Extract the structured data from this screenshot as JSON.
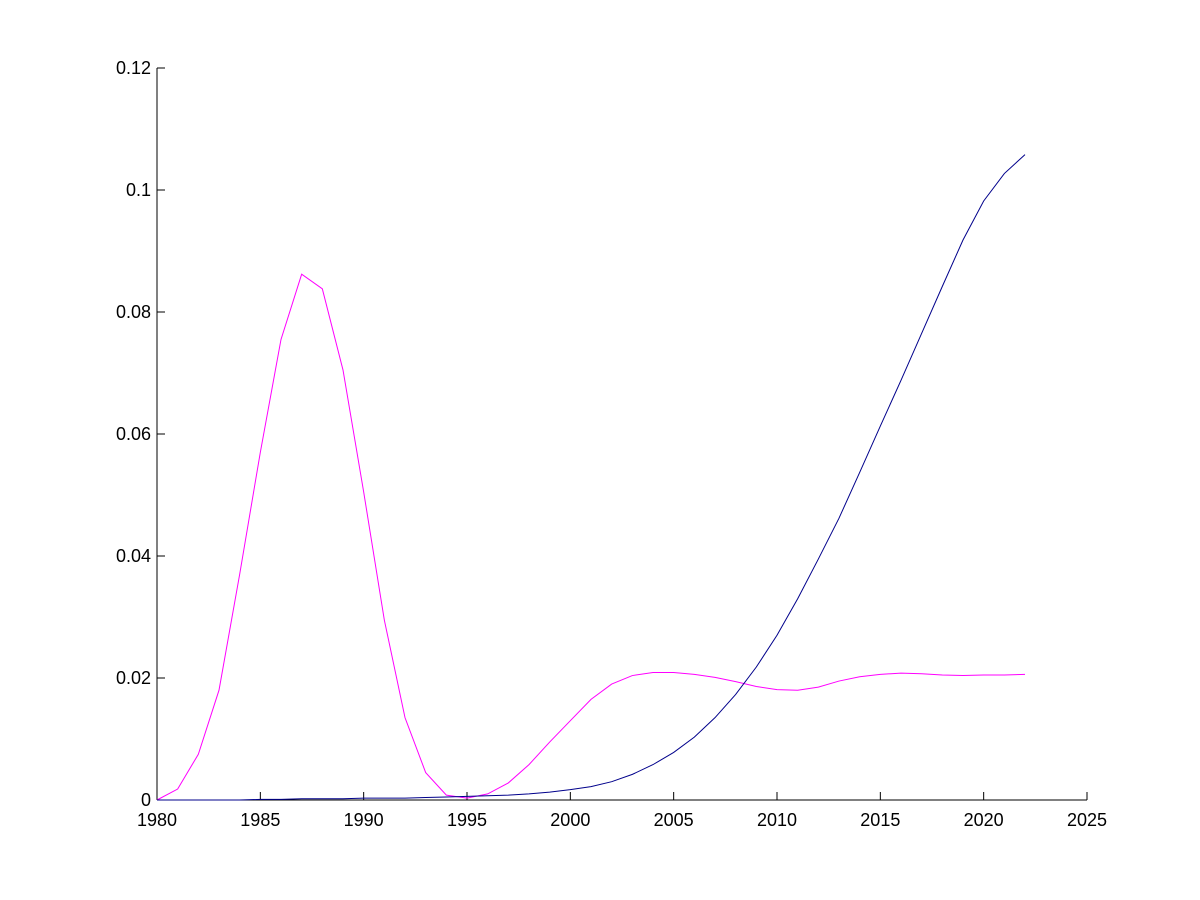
{
  "chart_data": {
    "type": "line",
    "title": "",
    "xlabel": "",
    "ylabel": "",
    "xlim": [
      1980,
      2025
    ],
    "ylim": [
      0,
      0.12
    ],
    "grid": false,
    "x_ticks": [
      "1980",
      "1985",
      "1990",
      "1995",
      "2000",
      "2005",
      "2010",
      "2015",
      "2020",
      "2025"
    ],
    "y_ticks": [
      "0",
      "0.02",
      "0.04",
      "0.06",
      "0.08",
      "0.1",
      "0.12"
    ],
    "x": [
      1980,
      1981,
      1982,
      1983,
      1984,
      1985,
      1986,
      1987,
      1988,
      1989,
      1990,
      1991,
      1992,
      1993,
      1994,
      1995,
      1996,
      1997,
      1998,
      1999,
      2000,
      2001,
      2002,
      2003,
      2004,
      2005,
      2006,
      2007,
      2008,
      2009,
      2010,
      2011,
      2012,
      2013,
      2014,
      2015,
      2016,
      2017,
      2018,
      2019,
      2020,
      2021,
      2022
    ],
    "series": [
      {
        "color": "#ff00ff",
        "values": [
          0.0,
          0.0018,
          0.0075,
          0.018,
          0.037,
          0.057,
          0.0755,
          0.0862,
          0.0838,
          0.0705,
          0.0505,
          0.0295,
          0.0135,
          0.0045,
          0.0008,
          0.0003,
          0.001,
          0.0028,
          0.0058,
          0.0095,
          0.013,
          0.0165,
          0.019,
          0.0204,
          0.0209,
          0.0209,
          0.0206,
          0.0201,
          0.0194,
          0.0186,
          0.0181,
          0.018,
          0.0185,
          0.0195,
          0.0202,
          0.0206,
          0.0208,
          0.0207,
          0.0205,
          0.0204,
          0.0205,
          0.0205,
          0.0206
        ]
      },
      {
        "color": "#00008b",
        "values": [
          0.0,
          0.0,
          0.0,
          0.0,
          0.0,
          0.0001,
          0.0001,
          0.0002,
          0.0002,
          0.0002,
          0.0003,
          0.0003,
          0.0003,
          0.0004,
          0.0005,
          0.0006,
          0.0007,
          0.0008,
          0.001,
          0.0013,
          0.0017,
          0.0022,
          0.003,
          0.0042,
          0.0058,
          0.0078,
          0.0103,
          0.0135,
          0.0173,
          0.0218,
          0.027,
          0.033,
          0.0395,
          0.0462,
          0.0537,
          0.0613,
          0.0688,
          0.0765,
          0.0842,
          0.0918,
          0.0982,
          0.1027,
          0.1058
        ]
      }
    ]
  }
}
